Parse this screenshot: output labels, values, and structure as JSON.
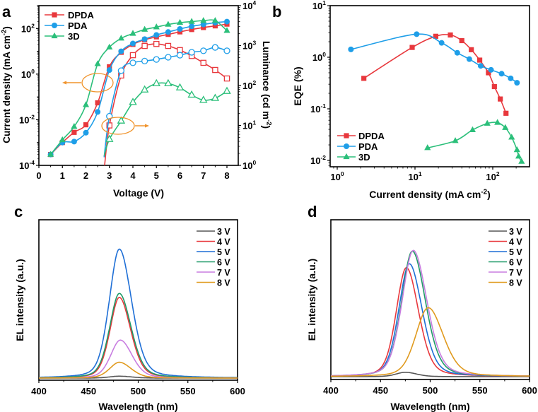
{
  "figure": {
    "panel_letters": [
      "a",
      "b",
      "c",
      "d"
    ]
  },
  "chart_data": [
    {
      "id": "a",
      "type": "line",
      "title": "",
      "xlabel": "Voltage (V)",
      "ylabel": "Current density (mA cm-2)",
      "ylabel_parts": {
        "main": "Current density (mA cm",
        "sup": "-2",
        "end": ")"
      },
      "y2label_parts": {
        "main": "Luminance (cd m",
        "sup": "-2",
        "end": ")"
      },
      "xlim": [
        0,
        8.3
      ],
      "ylim_log": [
        -4,
        3
      ],
      "y2lim_log": [
        0,
        4
      ],
      "xticks": [
        "0",
        "1",
        "2",
        "3",
        "4",
        "5",
        "6",
        "7",
        "8"
      ],
      "yticks": [
        {
          "base": "10",
          "exp": "-4"
        },
        {
          "base": "10",
          "exp": "-2"
        },
        {
          "base": "10",
          "exp": "0"
        },
        {
          "base": "10",
          "exp": "2"
        }
      ],
      "y2ticks": [
        {
          "base": "10",
          "exp": "0"
        },
        {
          "base": "10",
          "exp": "1"
        },
        {
          "base": "10",
          "exp": "2"
        },
        {
          "base": "10",
          "exp": "3"
        },
        {
          "base": "10",
          "exp": "4"
        }
      ],
      "legend": {
        "placement": "top-left",
        "entries": [
          "DPDA",
          "PDA",
          "3D"
        ]
      },
      "x": [
        0.5,
        1,
        1.5,
        2,
        2.5,
        3,
        3.5,
        4,
        4.5,
        5,
        5.5,
        6,
        6.5,
        7,
        7.5,
        8
      ],
      "series": [
        {
          "name": "DPDA",
          "axis": "left",
          "color": "#e8383d",
          "marker": "square",
          "filled": true,
          "values": [
            0.0003,
            0.001,
            0.0028,
            0.006,
            0.055,
            2.1,
            9,
            20,
            32,
            43,
            55,
            71,
            90,
            110,
            130,
            155
          ]
        },
        {
          "name": "PDA",
          "axis": "left",
          "color": "#1e9ee8",
          "marker": "circle",
          "filled": true,
          "values": [
            0.0003,
            0.001,
            0.0011,
            0.0027,
            0.022,
            1.5,
            10,
            22,
            34,
            52,
            70,
            95,
            125,
            150,
            180,
            200
          ]
        },
        {
          "name": "3D",
          "axis": "left",
          "color": "#2bbf7a",
          "marker": "triangle",
          "filled": true,
          "values": [
            0.0003,
            0.0013,
            0.005,
            0.045,
            2.8,
            15,
            37,
            60,
            90,
            115,
            150,
            180,
            200,
            220,
            220,
            80
          ]
        },
        {
          "name": "DPDA luminance",
          "axis": "right",
          "color": "#e8383d",
          "marker": "square",
          "filled": false,
          "x": [
            3,
            3.5,
            4,
            4.5,
            5,
            5.5,
            6,
            6.5,
            7,
            7.5,
            8
          ],
          "values": [
            10,
            178,
            575,
            980,
            1100,
            980,
            770,
            550,
            370,
            245,
            150
          ]
        },
        {
          "name": "PDA luminance",
          "axis": "right",
          "color": "#1e9ee8",
          "marker": "circle",
          "filled": false,
          "x": [
            3,
            3.5,
            4,
            4.5,
            5,
            5.5,
            6,
            6.5,
            7,
            7.5,
            8
          ],
          "values": [
            17,
            235,
            370,
            410,
            450,
            510,
            575,
            680,
            740,
            900,
            740
          ]
        },
        {
          "name": "3D luminance",
          "axis": "right",
          "color": "#2bbf7a",
          "marker": "triangle",
          "filled": false,
          "x": [
            3,
            3.5,
            4,
            4.5,
            5,
            5.5,
            6,
            6.5,
            7,
            7.5,
            8
          ],
          "values": [
            4.5,
            13,
            38,
            78,
            112,
            112,
            88,
            58,
            43,
            48,
            72
          ]
        }
      ],
      "annotations": [
        {
          "type": "ellipse-arrow",
          "points_to": "left-axis",
          "color": "#f0932b"
        },
        {
          "type": "ellipse-arrow",
          "points_to": "right-axis",
          "color": "#f0932b"
        }
      ]
    },
    {
      "id": "b",
      "type": "line",
      "xlabel_parts": {
        "main": "Current density (mA cm",
        "sup": "-2",
        "end": ")"
      },
      "ylabel": "EQE (%)",
      "xlim_log": [
        -0.09,
        2.47
      ],
      "ylim_log": [
        -2.1,
        1
      ],
      "xticks": [
        {
          "base": "10",
          "exp": "0"
        },
        {
          "base": "10",
          "exp": "1"
        },
        {
          "base": "10",
          "exp": "2"
        }
      ],
      "yticks": [
        {
          "base": "10",
          "exp": "-2"
        },
        {
          "base": "10",
          "exp": "-1"
        },
        {
          "base": "10",
          "exp": "0"
        },
        {
          "base": "10",
          "exp": "1"
        }
      ],
      "legend": {
        "placement": "bottom-left",
        "entries": [
          "DPDA",
          "PDA",
          "3D"
        ]
      },
      "series": [
        {
          "name": "DPDA",
          "color": "#e8383d",
          "marker": "square",
          "x": [
            2.2,
            9.2,
            18.5,
            28.5,
            40,
            53,
            68,
            88,
            105,
            125,
            148
          ],
          "values": [
            0.39,
            1.55,
            2.55,
            2.7,
            2.1,
            1.4,
            0.88,
            0.5,
            0.27,
            0.155,
            0.082
          ]
        },
        {
          "name": "PDA",
          "color": "#1e9ee8",
          "marker": "circle",
          "x": [
            1.5,
            10.5,
            22,
            35,
            50,
            70,
            95,
            130,
            170,
            205
          ],
          "values": [
            1.42,
            2.8,
            1.9,
            1.22,
            0.92,
            0.68,
            0.57,
            0.48,
            0.39,
            0.32
          ]
        },
        {
          "name": "3D",
          "color": "#2bbf7a",
          "marker": "triangle",
          "x": [
            14.5,
            33,
            55,
            85,
            115,
            145,
            175,
            205,
            215,
            235
          ],
          "values": [
            0.0175,
            0.024,
            0.039,
            0.052,
            0.054,
            0.043,
            0.028,
            0.016,
            0.012,
            0.0095
          ]
        }
      ]
    },
    {
      "id": "c",
      "type": "line",
      "xlabel": "Wavelength (nm)",
      "ylabel": "EL intensity (a.u.)",
      "xlim": [
        400,
        600
      ],
      "ylim": [
        0,
        1
      ],
      "xticks": [
        "400",
        "450",
        "500",
        "550",
        "600"
      ],
      "legend": {
        "placement": "top-right",
        "entries": [
          "3 V",
          "4 V",
          "5 V",
          "6 V",
          "7 V",
          "8 V"
        ]
      },
      "series": [
        {
          "name": "3 V",
          "color": "#555555",
          "peak_nm": 481,
          "peak_intensity": 0.012,
          "fwhm_nm": 26
        },
        {
          "name": "4 V",
          "color": "#e8383d",
          "peak_nm": 481,
          "peak_intensity": 0.51,
          "fwhm_nm": 24
        },
        {
          "name": "5 V",
          "color": "#1f6fd6",
          "peak_nm": 481,
          "peak_intensity": 0.815,
          "fwhm_nm": 26
        },
        {
          "name": "6 V",
          "color": "#1f9a68",
          "peak_nm": 481,
          "peak_intensity": 0.535,
          "fwhm_nm": 25
        },
        {
          "name": "7 V",
          "color": "#c87de0",
          "peak_nm": 482,
          "peak_intensity": 0.24,
          "fwhm_nm": 25
        },
        {
          "name": "8 V",
          "color": "#e09a1e",
          "peak_nm": 481,
          "peak_intensity": 0.1,
          "fwhm_nm": 25
        }
      ]
    },
    {
      "id": "d",
      "type": "line",
      "xlabel": "Wavelength (nm)",
      "ylabel": "EL intensity (a.u.)",
      "xlim": [
        400,
        600
      ],
      "ylim": [
        0,
        1
      ],
      "xticks": [
        "400",
        "450",
        "500",
        "550",
        "600"
      ],
      "legend": {
        "placement": "top-right",
        "entries": [
          "3 V",
          "4 V",
          "5 V",
          "6 V",
          "7 V",
          "8 V"
        ]
      },
      "series": [
        {
          "name": "3 V",
          "color": "#555555",
          "peak_nm": 475,
          "peak_intensity": 0.028,
          "fwhm_nm": 24
        },
        {
          "name": "4 V",
          "color": "#e8383d",
          "peak_nm": 476,
          "peak_intensity": 0.695,
          "fwhm_nm": 26
        },
        {
          "name": "5 V",
          "color": "#1f6fd6",
          "peak_nm": 479,
          "peak_intensity": 0.72,
          "fwhm_nm": 27
        },
        {
          "name": "6 V",
          "color": "#1f9a68",
          "peak_nm": 482,
          "peak_intensity": 0.8,
          "fwhm_nm": 28
        },
        {
          "name": "7 V",
          "color": "#c87de0",
          "peak_nm": 483,
          "peak_intensity": 0.805,
          "fwhm_nm": 29
        },
        {
          "name": "8 V",
          "color": "#e09a1e",
          "peak_nm": 498,
          "peak_intensity": 0.44,
          "fwhm_nm": 32
        }
      ]
    }
  ]
}
